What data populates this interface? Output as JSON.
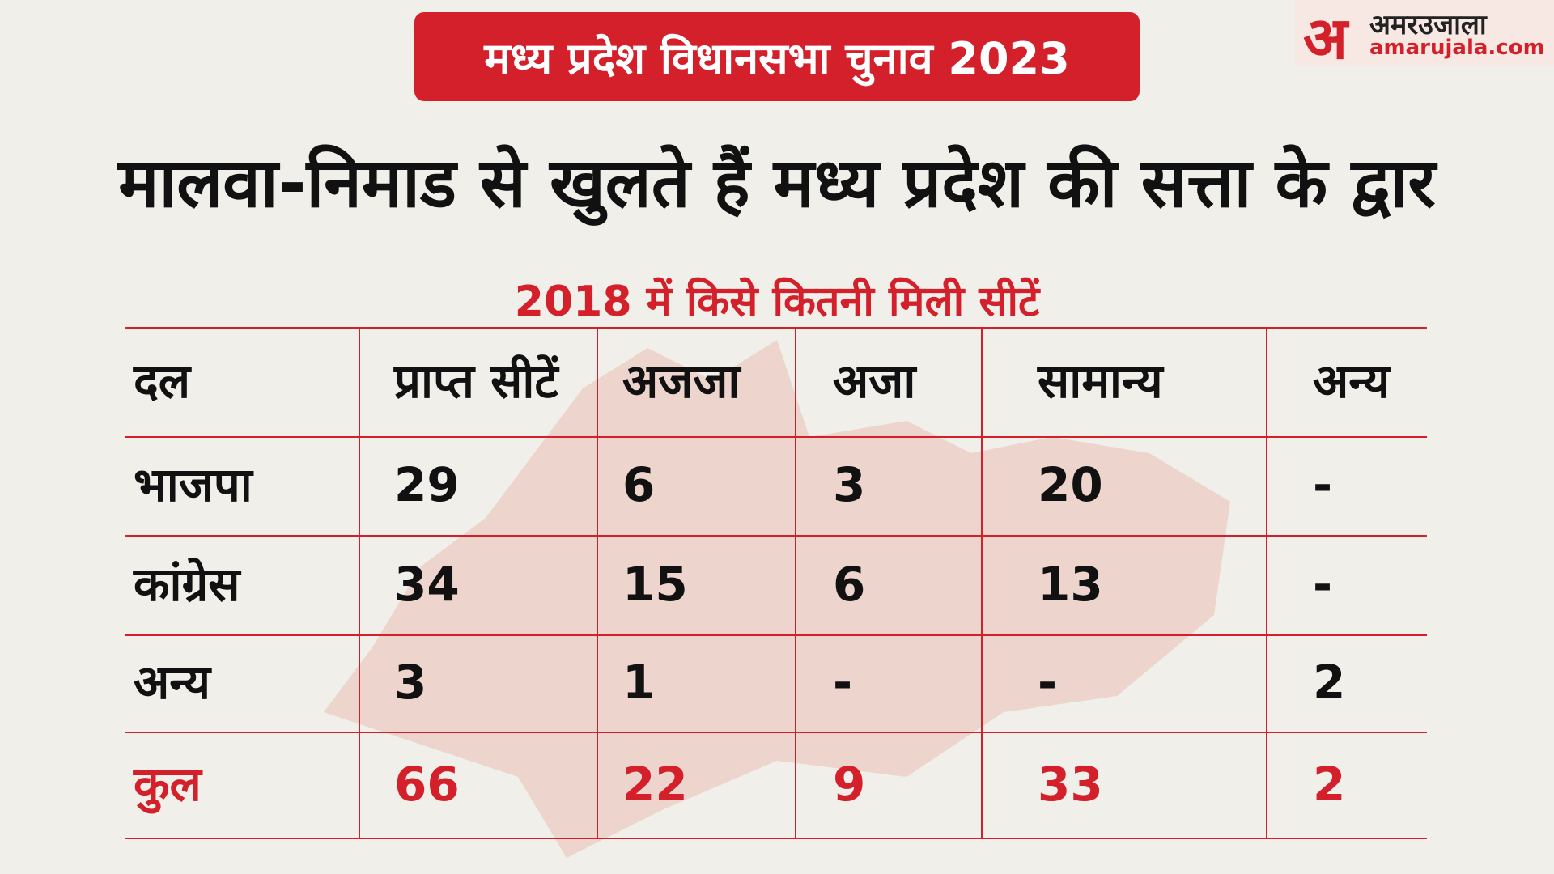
{
  "header": {
    "tag": "मध्य प्रदेश विधानसभा चुनाव 2023",
    "title": "मालवा-निमाड से खुलते हैं मध्य प्रदेश की सत्ता के द्वार"
  },
  "logo": {
    "mark": "अ",
    "name": "अमरउजाला",
    "site": "amarujala.com"
  },
  "table": {
    "caption": "2018 में किसे कितनी मिली सीटें",
    "columns": [
      "दल",
      "प्राप्त सीटें",
      "अजजा",
      "अजा",
      "सामान्य",
      "अन्य"
    ],
    "rows": [
      [
        "भाजपा",
        29,
        6,
        3,
        20,
        "-"
      ],
      [
        "कांग्रेस",
        34,
        15,
        6,
        13,
        "-"
      ],
      [
        "अन्य",
        3,
        1,
        "-",
        "-",
        2
      ],
      [
        "कुल",
        66,
        22,
        9,
        33,
        2
      ]
    ]
  }
}
